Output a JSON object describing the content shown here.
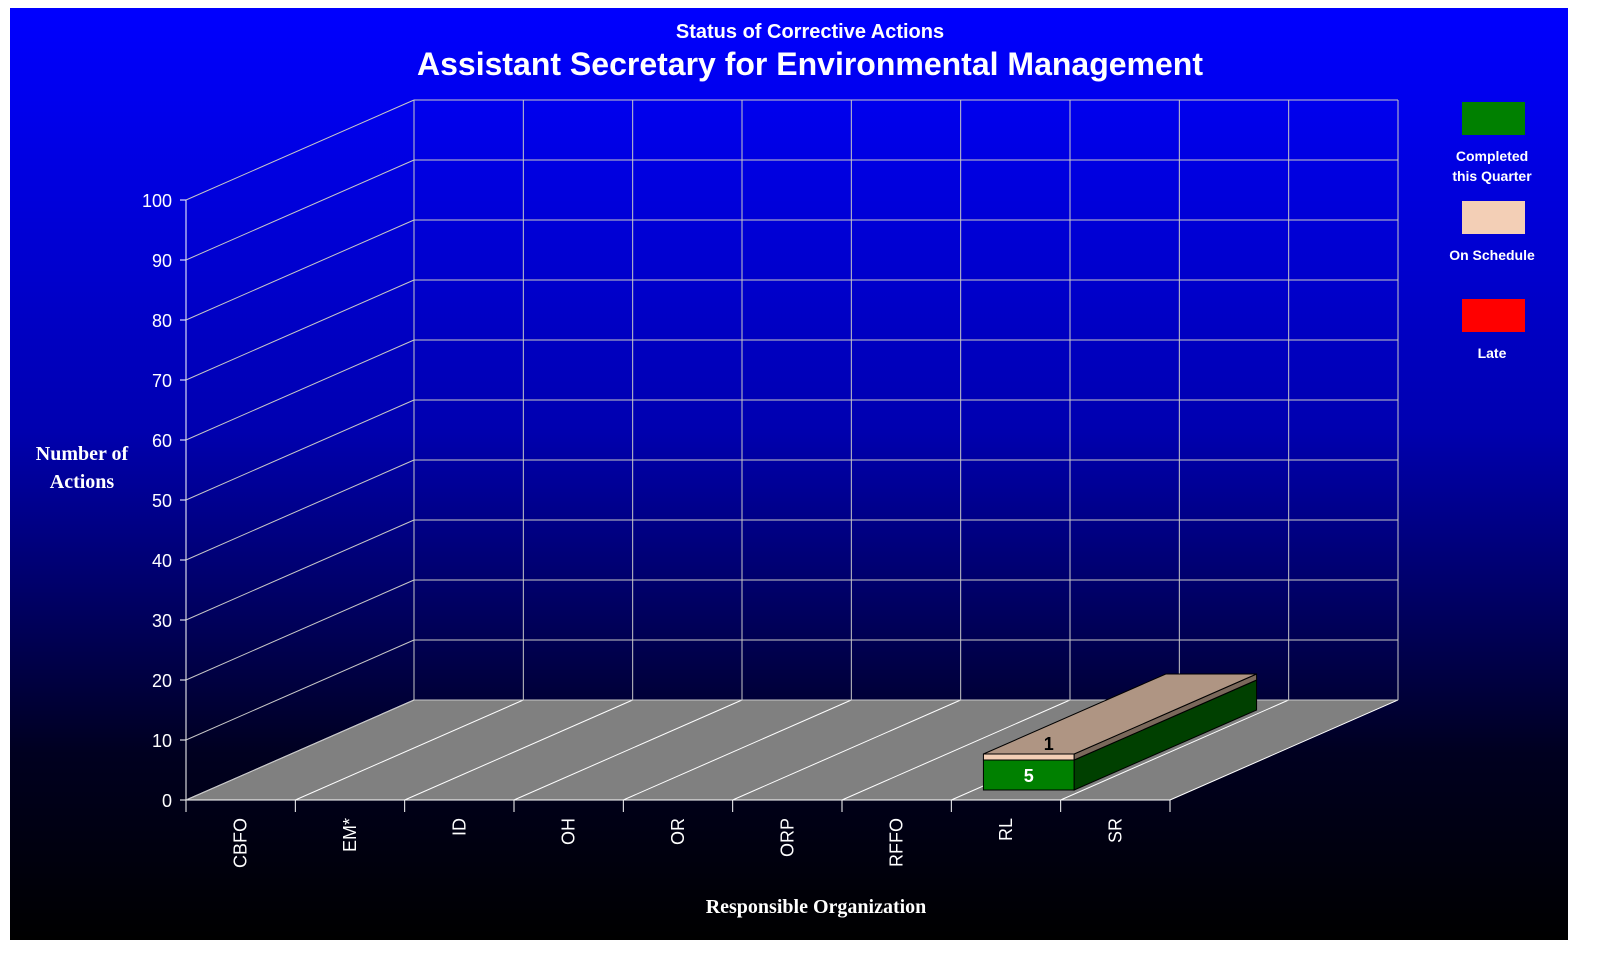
{
  "chart_data": {
    "type": "bar3d-stacked",
    "subtitle": "Status of Corrective Actions",
    "title": "Assistant Secretary for Environmental Management",
    "y_label": "Number of Actions",
    "x_label": "Responsible Organization",
    "categories": [
      "CBFO",
      "EM*",
      "ID",
      "OH",
      "OR",
      "ORP",
      "RFFO",
      "RL",
      "SR"
    ],
    "series": [
      {
        "name": "Completed this Quarter",
        "color": "#008000",
        "values": [
          0,
          0,
          0,
          0,
          0,
          0,
          0,
          5,
          0
        ]
      },
      {
        "name": "On Schedule",
        "color": "#f3cfb6",
        "values": [
          0,
          0,
          0,
          0,
          0,
          0,
          0,
          1,
          0
        ]
      },
      {
        "name": "Late",
        "color": "#ff0000",
        "values": [
          0,
          0,
          0,
          0,
          0,
          0,
          0,
          0,
          0
        ]
      }
    ],
    "ylim": [
      0,
      100
    ],
    "yticks": [
      0,
      10,
      20,
      30,
      40,
      50,
      60,
      70,
      80,
      90,
      100
    ],
    "grid": true,
    "legend": "right"
  }
}
